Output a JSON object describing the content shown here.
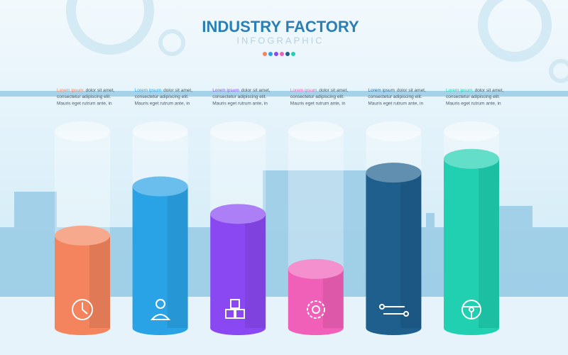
{
  "chart_data": {
    "type": "bar",
    "title": "INDUSTRY FACTORY",
    "subtitle": "INFOGRAPHIC",
    "ylim": [
      0,
      100
    ],
    "values": [
      47,
      72,
      58,
      30,
      79,
      86
    ],
    "colors": [
      "#f4845e",
      "#2aa3e6",
      "#8a48f2",
      "#f060b8",
      "#1e5f8e",
      "#20d0b0"
    ],
    "annotations": [
      {
        "lead": "Lorem ipsum",
        "lines": [
          "dolor sit amet,",
          "consectetur adipiscing elit.",
          "Mauris eget rutrum ante, in"
        ]
      },
      {
        "lead": "Lorem ipsum",
        "lines": [
          "dolor sit amet,",
          "consectetur adipiscing elit.",
          "Mauris eget rutrum ante, in"
        ]
      },
      {
        "lead": "Lorem ipsum",
        "lines": [
          "dolor sit amet,",
          "consectetur adipiscing elit.",
          "Mauris eget rutrum ante, in"
        ]
      },
      {
        "lead": "Lorem ipsum",
        "lines": [
          "dolor sit amet,",
          "consectetur adipiscing elit.",
          "Mauris eget rutrum ante, in"
        ]
      },
      {
        "lead": "Lorem ipsum",
        "lines": [
          "dolor sit amet,",
          "consectetur adipiscing elit.",
          "Mauris eget rutrum ante, in"
        ]
      },
      {
        "lead": "Lorem ipsum",
        "lines": [
          "dolor sit amet,",
          "consectetur adipiscing elit.",
          "Mauris eget rutrum ante, in"
        ]
      }
    ]
  }
}
